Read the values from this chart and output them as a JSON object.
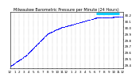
{
  "title": "Milwaukee Barometric Pressure per Minute (24 Hours)",
  "title_fontsize": 3.5,
  "bg_color": "#ffffff",
  "plot_bg_color": "#ffffff",
  "dot_color": "#0000ff",
  "dot_size": 0.3,
  "highlight_color": "#00ccff",
  "grid_color": "#888888",
  "tick_color": "#000000",
  "tick_fontsize": 3.0,
  "label_fontsize": 3.0,
  "ylim": [
    29.35,
    30.25
  ],
  "xlim": [
    0,
    1440
  ],
  "yticks": [
    29.4,
    29.5,
    29.6,
    29.7,
    29.8,
    29.9,
    30.0,
    30.1,
    30.2
  ],
  "ytick_labels": [
    "29.4",
    "29.5",
    "29.6",
    "29.7",
    "29.8",
    "29.9",
    "30.0",
    "30.1",
    "30.2"
  ],
  "xtick_positions": [
    0,
    60,
    120,
    180,
    240,
    300,
    360,
    420,
    480,
    540,
    600,
    660,
    720,
    780,
    840,
    900,
    960,
    1020,
    1080,
    1140,
    1200,
    1260,
    1320,
    1380,
    1440
  ],
  "xtick_labels": [
    "12",
    "1",
    "2",
    "3",
    "4",
    "5",
    "6",
    "7",
    "8",
    "9",
    "10",
    "11",
    "12",
    "1",
    "2",
    "3",
    "4",
    "5",
    "6",
    "7",
    "8",
    "9",
    "10",
    "11",
    "12"
  ],
  "highlight_x_start": 1100,
  "highlight_x_end": 1390,
  "highlight_y": 30.215,
  "highlight_linewidth": 2.0
}
